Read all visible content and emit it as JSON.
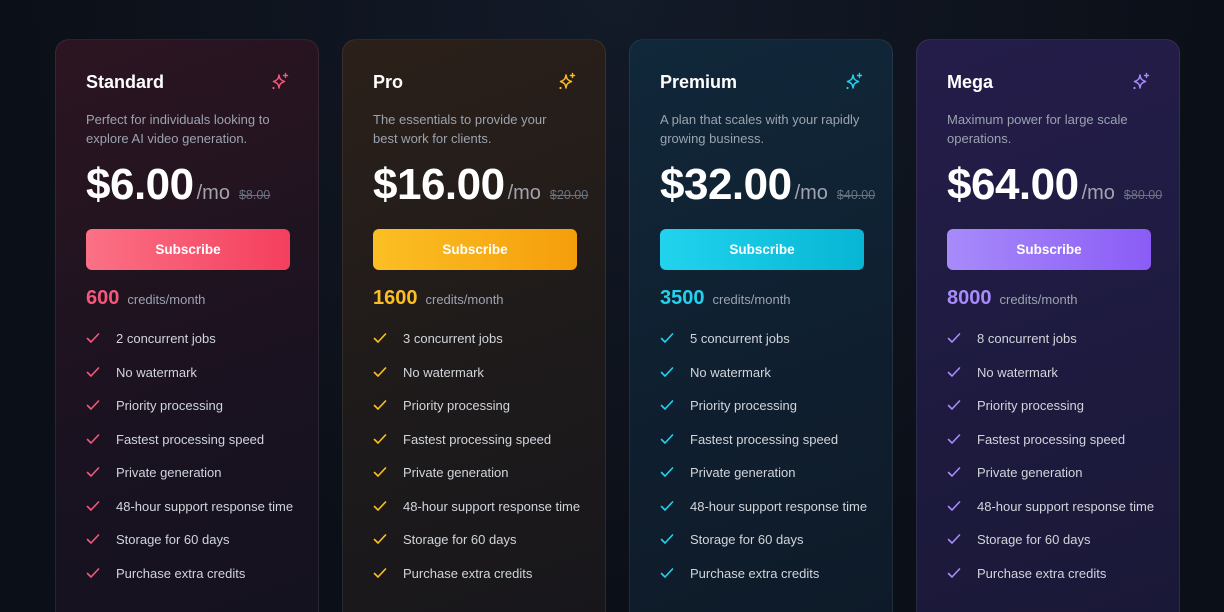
{
  "plans": [
    {
      "name": "Standard",
      "description": "Perfect for individuals looking to explore AI video generation.",
      "price": "$6.00",
      "period": "/mo",
      "original_price": "$8.00",
      "button": "Subscribe",
      "credits": "600",
      "credits_label": "credits/month",
      "icon": "sparkle-icon",
      "accent": "#f2587a",
      "gradient": [
        "#fb7185",
        "#f43f5e"
      ],
      "features": [
        "2 concurrent jobs",
        "No watermark",
        "Priority processing",
        "Fastest processing speed",
        "Private generation",
        "48-hour support response time",
        "Storage for 60 days",
        "Purchase extra credits"
      ]
    },
    {
      "name": "Pro",
      "description": "The essentials to provide your best work for clients.",
      "price": "$16.00",
      "period": "/mo",
      "original_price": "$20.00",
      "button": "Subscribe",
      "credits": "1600",
      "credits_label": "credits/month",
      "icon": "sparkle-icon",
      "accent": "#fbbf24",
      "gradient": [
        "#fbbf24",
        "#f59e0b"
      ],
      "features": [
        "3 concurrent jobs",
        "No watermark",
        "Priority processing",
        "Fastest processing speed",
        "Private generation",
        "48-hour support response time",
        "Storage for 60 days",
        "Purchase extra credits"
      ]
    },
    {
      "name": "Premium",
      "description": "A plan that scales with your rapidly growing business.",
      "price": "$32.00",
      "period": "/mo",
      "original_price": "$40.00",
      "button": "Subscribe",
      "credits": "3500",
      "credits_label": "credits/month",
      "icon": "sparkle-icon",
      "accent": "#22d3ee",
      "gradient": [
        "#22d3ee",
        "#06b6d4"
      ],
      "features": [
        "5 concurrent jobs",
        "No watermark",
        "Priority processing",
        "Fastest processing speed",
        "Private generation",
        "48-hour support response time",
        "Storage for 60 days",
        "Purchase extra credits"
      ]
    },
    {
      "name": "Mega",
      "description": "Maximum power for large scale operations.",
      "price": "$64.00",
      "period": "/mo",
      "original_price": "$80.00",
      "button": "Subscribe",
      "credits": "8000",
      "credits_label": "credits/month",
      "icon": "sparkle-icon",
      "accent": "#a78bfa",
      "gradient": [
        "#a78bfa",
        "#8b5cf6"
      ],
      "features": [
        "8 concurrent jobs",
        "No watermark",
        "Priority processing",
        "Fastest processing speed",
        "Private generation",
        "48-hour support response time",
        "Storage for 60 days",
        "Purchase extra credits"
      ]
    }
  ]
}
